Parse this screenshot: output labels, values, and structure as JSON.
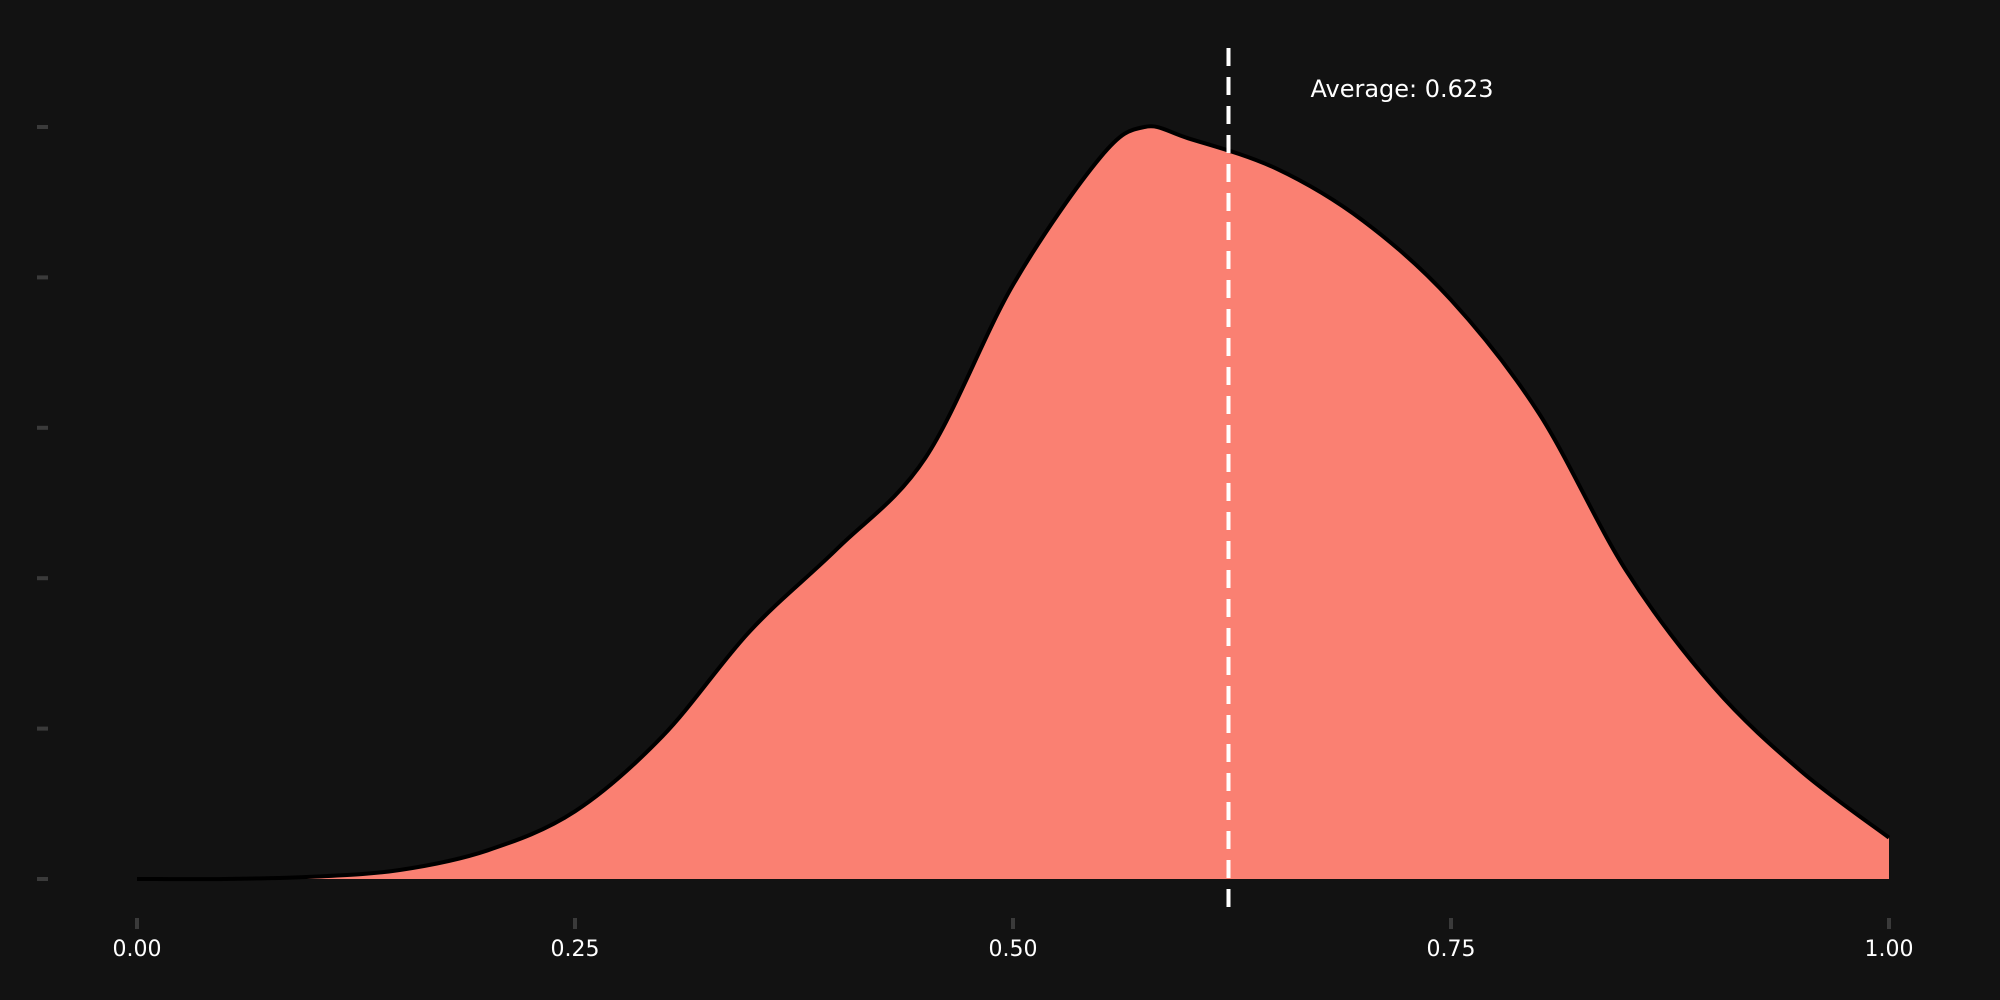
{
  "chart_data": {
    "type": "area",
    "title": "",
    "xlabel": "",
    "ylabel": "",
    "xlim": [
      0,
      1
    ],
    "ylim": [
      0,
      1
    ],
    "x_ticks": [
      0.0,
      0.25,
      0.5,
      0.75,
      1.0
    ],
    "x_tick_labels": [
      "0.00",
      "0.25",
      "0.50",
      "0.75",
      "1.00"
    ],
    "y_ticks": [
      0,
      0.2,
      0.4,
      0.6,
      0.8,
      1.0
    ],
    "y_tick_labels": [
      "",
      "",
      "",
      "",
      "",
      ""
    ],
    "grid": false,
    "legend": "none",
    "series": [
      {
        "x": [
          0.0,
          0.05,
          0.1,
          0.15,
          0.2,
          0.25,
          0.3,
          0.35,
          0.4,
          0.45,
          0.5,
          0.55,
          0.575,
          0.6,
          0.65,
          0.7,
          0.75,
          0.8,
          0.85,
          0.9,
          0.95,
          1.0
        ],
        "y": [
          0.0,
          0.0,
          0.003,
          0.012,
          0.038,
          0.09,
          0.19,
          0.33,
          0.44,
          0.56,
          0.79,
          0.96,
          1.0,
          0.985,
          0.945,
          0.875,
          0.77,
          0.62,
          0.41,
          0.255,
          0.143,
          0.055
        ],
        "fill_color": "#FA8072",
        "line_color": "#000000"
      }
    ],
    "reference_line": {
      "x": 0.623,
      "label": "Average: 0.623",
      "color": "#ffffff",
      "style": "dashed"
    }
  }
}
